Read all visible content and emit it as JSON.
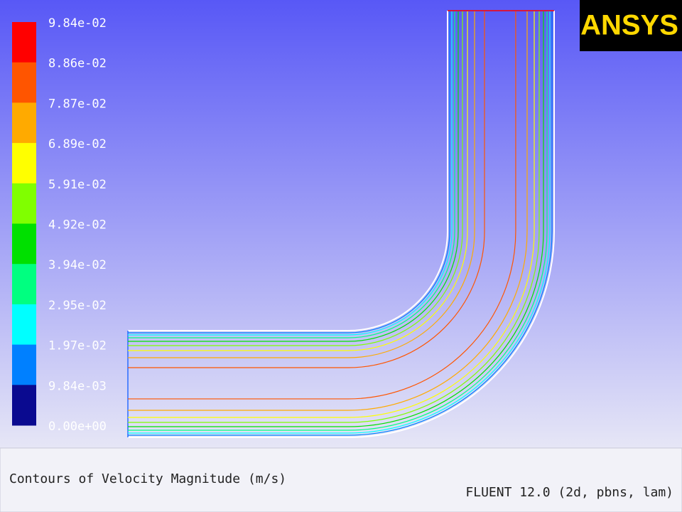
{
  "logo": "ANSYS",
  "colorbar": {
    "labels": [
      "9.84e-02",
      "8.86e-02",
      "7.87e-02",
      "6.89e-02",
      "5.91e-02",
      "4.92e-02",
      "3.94e-02",
      "2.95e-02",
      "1.97e-02",
      "9.84e-03",
      "0.00e+00"
    ],
    "colors": [
      "#ff0000",
      "#ff5500",
      "#ffaa00",
      "#ffff00",
      "#80ff00",
      "#00e000",
      "#00ff80",
      "#00ffff",
      "#0080ff",
      "#0a0a90"
    ]
  },
  "caption": "Contours of Velocity Magnitude (m/s)",
  "footer": "FLUENT 12.0 (2d, pbns, lam)"
}
